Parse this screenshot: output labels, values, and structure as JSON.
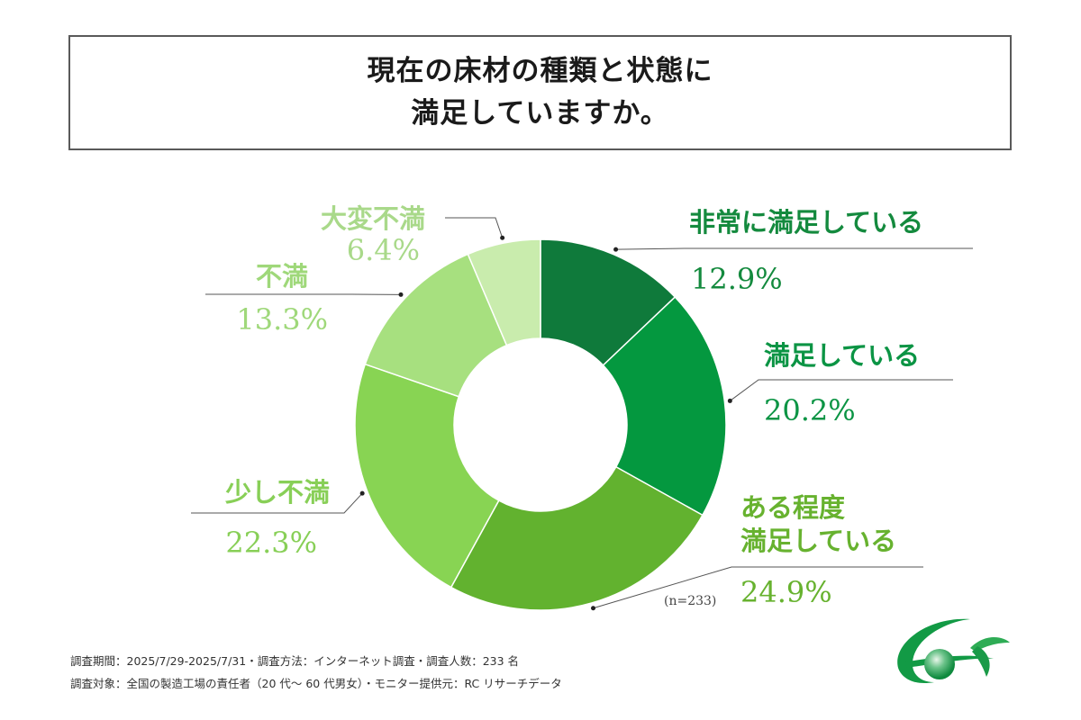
{
  "title": {
    "line1": "現在の床材の種類と状態に",
    "line2": "満足していますか。"
  },
  "chart_data": {
    "type": "pie",
    "donut": true,
    "title": "現在の床材の種類と状態に満足していますか。",
    "slices": [
      {
        "label": "非常に満足している",
        "value": 12.9,
        "display": "12.9%",
        "color": "#0f7a3b",
        "label_color": "#148a3e"
      },
      {
        "label": "満足している",
        "value": 20.2,
        "display": "20.2%",
        "color": "#04983f",
        "label_color": "#0b9444"
      },
      {
        "label": "ある程度\n満足している",
        "value": 24.9,
        "display": "24.9%",
        "color": "#62b22f",
        "label_color": "#67b22f"
      },
      {
        "label": "少し不満",
        "value": 22.3,
        "display": "22.3%",
        "color": "#88d453",
        "label_color": "#88cf57"
      },
      {
        "label": "不満",
        "value": 13.3,
        "display": "13.3%",
        "color": "#a7e07f",
        "label_color": "#9fd87a"
      },
      {
        "label": "大変不満",
        "value": 6.4,
        "display": "6.4%",
        "color": "#c9ecad",
        "label_color": "#a9d98a"
      }
    ],
    "start": "12 o'clock",
    "direction": "clockwise"
  },
  "labels": {
    "s0_name": "非常に満足している",
    "s0_pct": "12.9%",
    "s1_name": "満足している",
    "s1_pct": "20.2%",
    "s2_name1": "ある程度",
    "s2_name2": "満足している",
    "s2_pct": "24.9%",
    "s3_name": "少し不満",
    "s3_pct": "22.3%",
    "s4_name": "不満",
    "s4_pct": "13.3%",
    "s5_name": "大変不満",
    "s5_pct": "6.4%"
  },
  "n_note": "(n=233)",
  "footnotes": {
    "line1": "調査期間：2025/7/29-2025/7/31・調査方法：インターネット調査・調査人数：233 名",
    "line2": "調査対象：全国の製造工場の責任者（20 代〜 60 代男女）・モニター提供元：RC リサーチデータ"
  },
  "logo_icon": "green-orbit-logo-icon"
}
